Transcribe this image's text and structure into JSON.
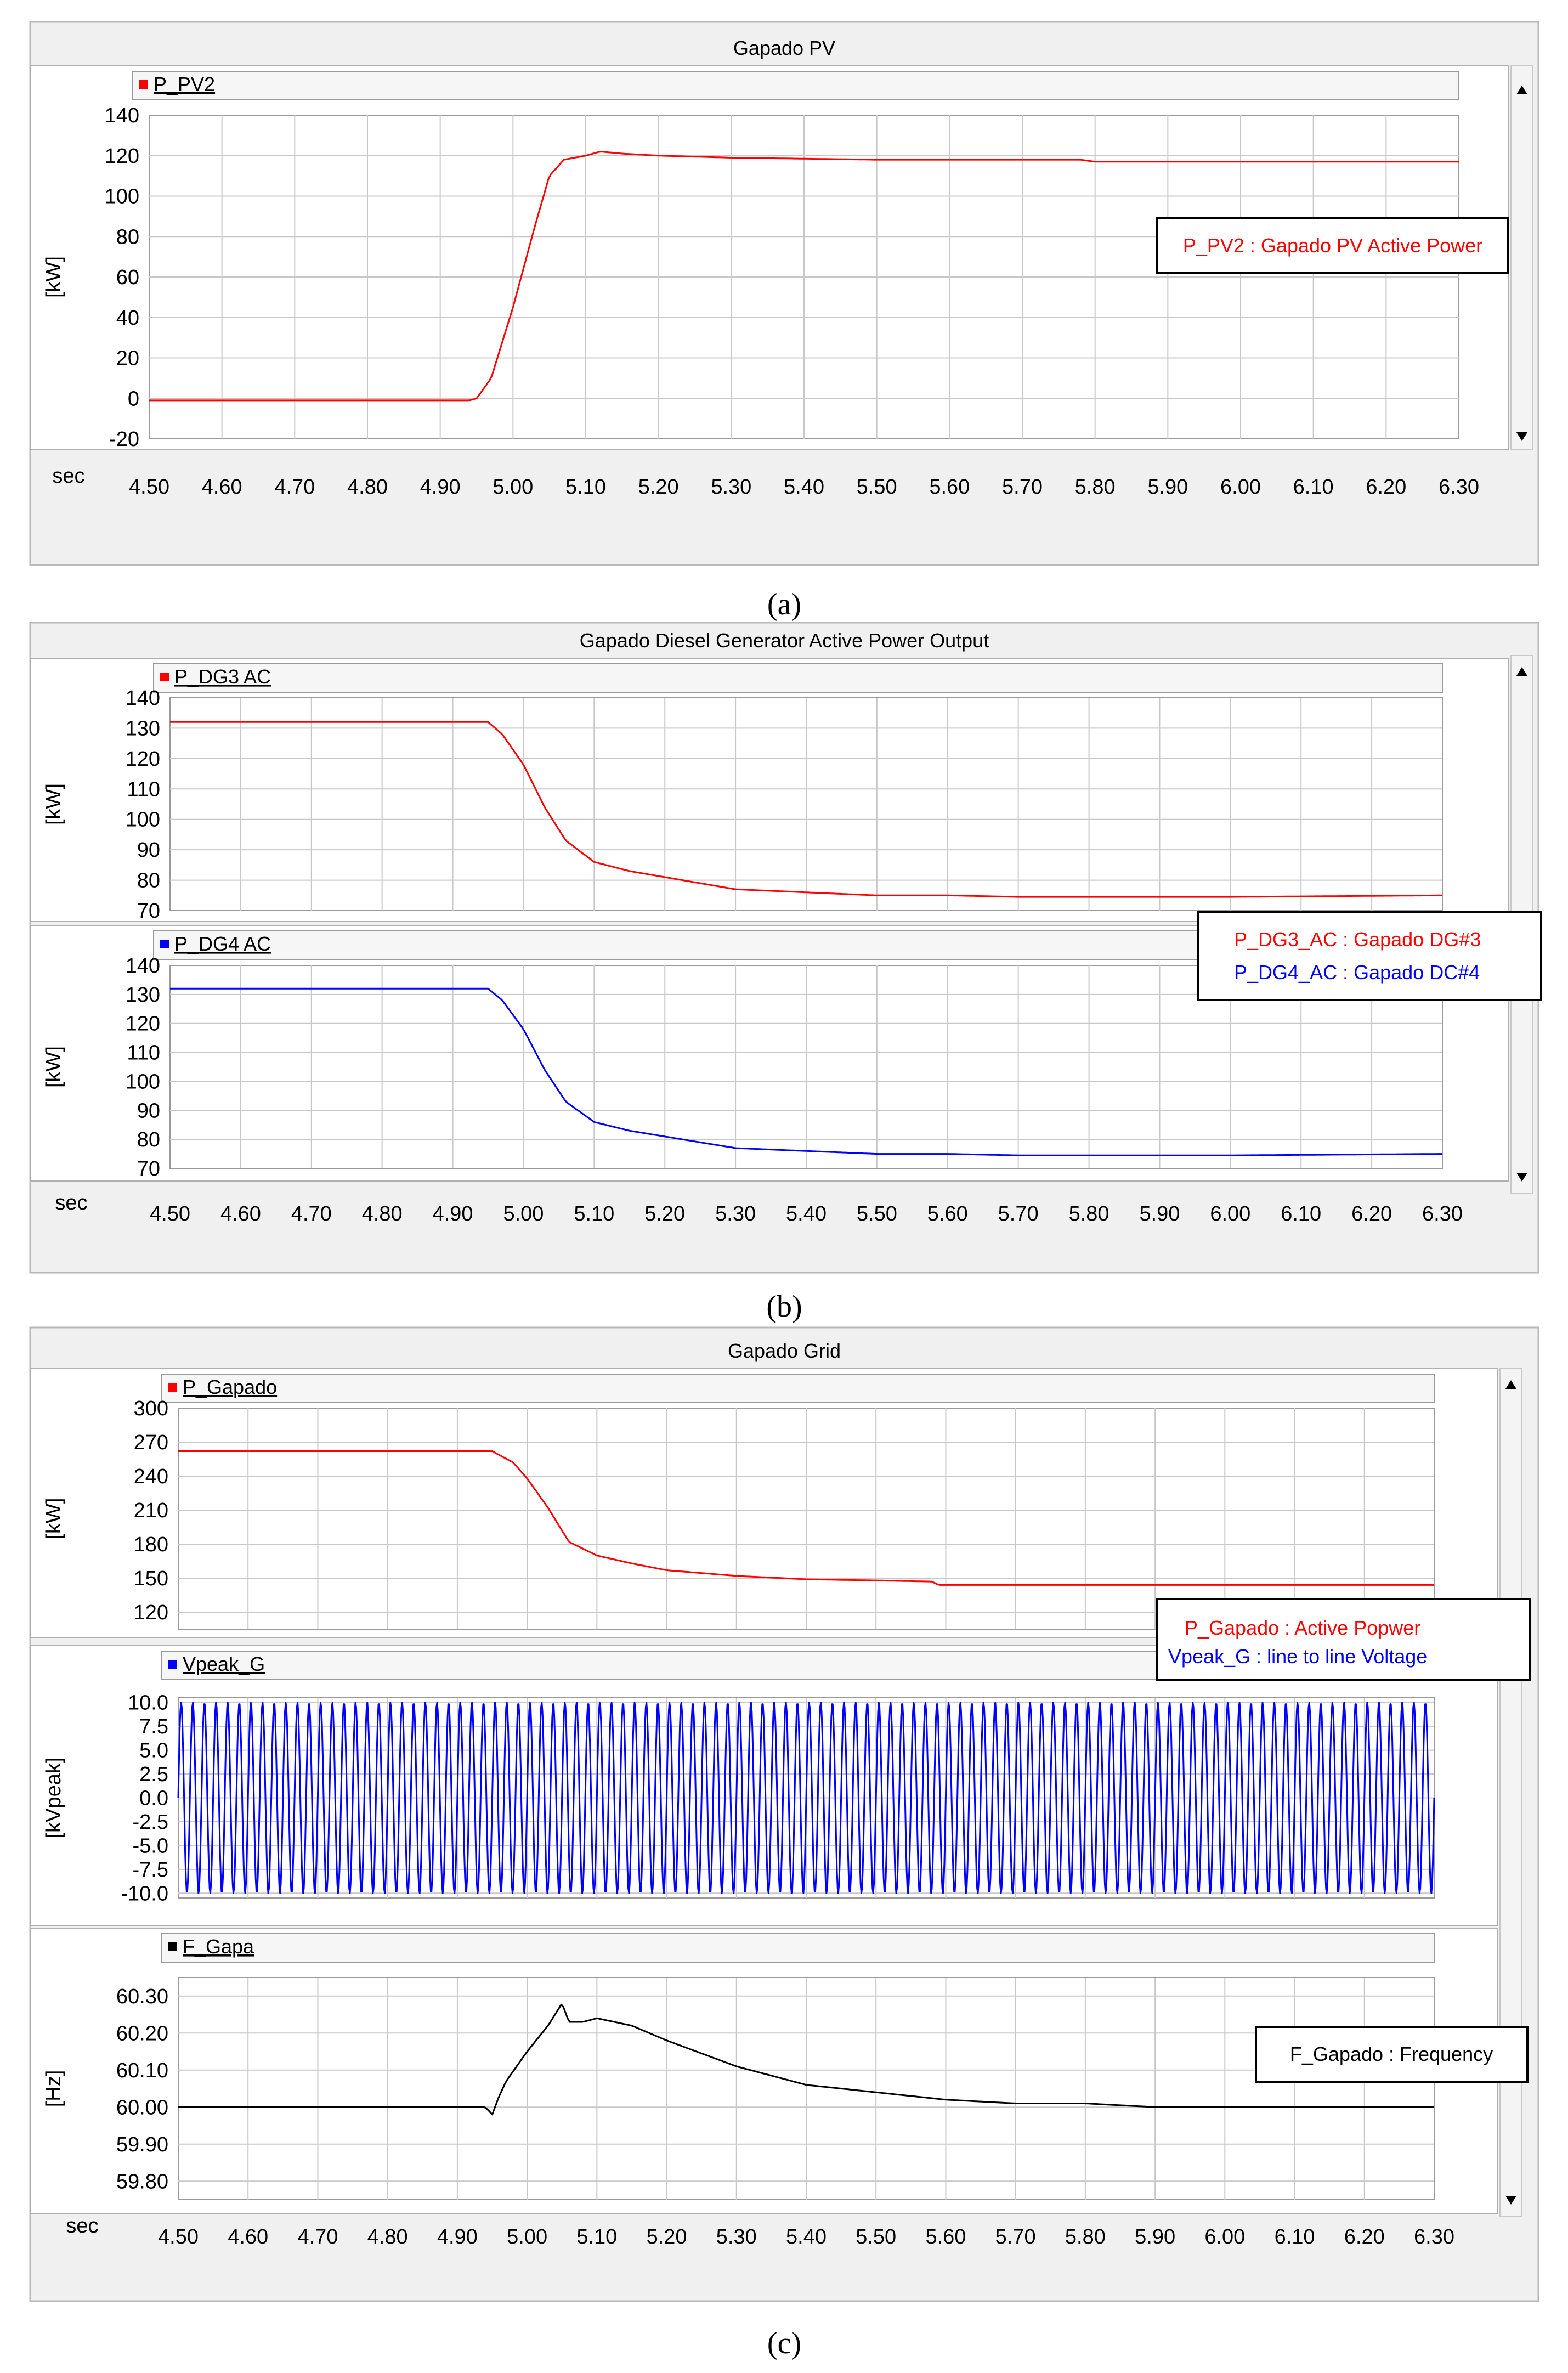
{
  "captions": [
    "(a)",
    "(b)",
    "(c)"
  ],
  "colors": {
    "red": "#ff0000",
    "blue": "#0000ff",
    "black": "#000000"
  },
  "icons": {
    "scroll_up": "up-triangle-icon",
    "scroll_down": "down-triangle-icon",
    "series_marker": "square-icon"
  },
  "x_axis": {
    "unit_label": "sec",
    "ticks": [
      "4.50",
      "4.60",
      "4.70",
      "4.80",
      "4.90",
      "5.00",
      "5.10",
      "5.20",
      "5.30",
      "5.40",
      "5.50",
      "5.60",
      "5.70",
      "5.80",
      "5.90",
      "6.00",
      "6.10",
      "6.20",
      "6.30"
    ]
  },
  "panels": [
    {
      "title": "Gapado PV",
      "legend": [
        {
          "text": "P_PV2 : Gapado PV Active Power",
          "color": "#ff0000"
        }
      ],
      "subplots": [
        {
          "signal": "P_PV2",
          "ylabel": "[kW]",
          "color": "#ff0000",
          "yticks": [
            "140",
            "120",
            "100",
            "80",
            "60",
            "40",
            "20",
            "0",
            "-20"
          ]
        }
      ]
    },
    {
      "title": "Gapado Diesel Generator Active Power Output",
      "legend": [
        {
          "text": "P_DG3_AC : Gapado  DG#3",
          "color": "#ff0000"
        },
        {
          "text": "P_DG4_AC : Gapado  DC#4",
          "color": "#0000ff"
        }
      ],
      "subplots": [
        {
          "signal": "P_DG3 AC",
          "ylabel": "[kW]",
          "color": "#ff0000",
          "yticks": [
            "140",
            "130",
            "120",
            "110",
            "100",
            "90",
            "80",
            "70"
          ]
        },
        {
          "signal": "P_DG4 AC",
          "ylabel": "[kW]",
          "color": "#0000ff",
          "yticks": [
            "140",
            "130",
            "120",
            "110",
            "100",
            "90",
            "80",
            "70"
          ]
        }
      ]
    },
    {
      "title": "Gapado Grid",
      "legend": [
        {
          "text": "P_Gapado : Active Popwer",
          "color": "#ff0000"
        },
        {
          "text": "Vpeak_G : line to line Voltage",
          "color": "#0000ff"
        }
      ],
      "legend2": [
        {
          "text": "F_Gapado : Frequency",
          "color": "#000000"
        }
      ],
      "subplots": [
        {
          "signal": "P_Gapado",
          "ylabel": "[kW]",
          "color": "#ff0000",
          "yticks": [
            "300",
            "270",
            "240",
            "210",
            "180",
            "150",
            "120"
          ]
        },
        {
          "signal": "Vpeak_G",
          "ylabel": "[kVpeak]",
          "color": "#0000ff",
          "yticks": [
            "10.0",
            "7.5",
            "5.0",
            "2.5",
            "0.0",
            "-2.5",
            "-5.0",
            "-7.5",
            "-10.0"
          ]
        },
        {
          "signal": "F_Gapa",
          "ylabel": "[Hz]",
          "color": "#000000",
          "yticks": [
            "60.30",
            "60.20",
            "60.10",
            "60.00",
            "59.90",
            "59.80"
          ]
        }
      ]
    }
  ],
  "chart_data": [
    {
      "type": "line",
      "title": "Gapado PV",
      "xlabel": "sec",
      "xlim": [
        4.5,
        6.3
      ],
      "series": [
        {
          "name": "P_PV2",
          "ylabel": "[kW]",
          "ylim": [
            -20,
            140
          ],
          "color": "#ff0000",
          "x": [
            4.5,
            4.94,
            4.95,
            4.97,
            5.0,
            5.03,
            5.05,
            5.07,
            5.1,
            5.12,
            5.15,
            5.2,
            5.3,
            5.5,
            5.78,
            5.8,
            5.9,
            6.0,
            6.1,
            6.2,
            6.3
          ],
          "y": [
            -1,
            -1,
            0,
            10,
            45,
            85,
            110,
            118,
            120,
            122,
            121,
            120,
            119,
            118,
            118,
            117,
            117,
            117,
            117,
            117,
            117
          ]
        }
      ]
    },
    {
      "type": "line",
      "title": "Gapado Diesel Generator Active Power Output",
      "xlabel": "sec",
      "xlim": [
        4.5,
        6.3
      ],
      "series": [
        {
          "name": "P_DG3 AC",
          "ylabel": "[kW]",
          "ylim": [
            70,
            140
          ],
          "color": "#ff0000",
          "x": [
            4.5,
            4.95,
            4.97,
            5.0,
            5.03,
            5.06,
            5.1,
            5.15,
            5.2,
            5.25,
            5.3,
            5.4,
            5.5,
            5.6,
            5.7,
            5.8,
            6.0,
            6.3
          ],
          "y": [
            132,
            132,
            128,
            118,
            104,
            93,
            86,
            83,
            81,
            79,
            77,
            76,
            75,
            75,
            74.5,
            74.5,
            74.5,
            75
          ]
        },
        {
          "name": "P_DG4 AC",
          "ylabel": "[kW]",
          "ylim": [
            70,
            140
          ],
          "color": "#0000ff",
          "x": [
            4.5,
            4.95,
            4.97,
            5.0,
            5.03,
            5.06,
            5.1,
            5.15,
            5.2,
            5.25,
            5.3,
            5.4,
            5.5,
            5.6,
            5.7,
            5.8,
            6.0,
            6.3
          ],
          "y": [
            132,
            132,
            128,
            118,
            104,
            93,
            86,
            83,
            81,
            79,
            77,
            76,
            75,
            75,
            74.5,
            74.5,
            74.5,
            75
          ]
        }
      ]
    },
    {
      "type": "line",
      "title": "Gapado Grid",
      "xlabel": "sec",
      "xlim": [
        4.5,
        6.3
      ],
      "series": [
        {
          "name": "P_Gapado",
          "ylabel": "[kW]",
          "ylim": [
            105,
            300
          ],
          "color": "#ff0000",
          "x": [
            4.5,
            4.95,
            4.98,
            5.0,
            5.03,
            5.06,
            5.1,
            5.15,
            5.2,
            5.3,
            5.4,
            5.5,
            5.58,
            5.59,
            5.7,
            6.0,
            6.3
          ],
          "y": [
            262,
            262,
            252,
            238,
            212,
            182,
            170,
            163,
            157,
            152,
            149,
            148,
            147,
            144,
            144,
            144,
            144
          ]
        },
        {
          "name": "Vpeak_G",
          "ylabel": "[kVpeak]",
          "ylim": [
            -10,
            10
          ],
          "color": "#0000ff",
          "amplitude": 10,
          "frequency_hz": 60
        },
        {
          "name": "F_Gapa",
          "ylabel": "[Hz]",
          "ylim": [
            59.75,
            60.35
          ],
          "color": "#000000",
          "x": [
            4.5,
            4.94,
            4.95,
            4.96,
            4.97,
            5.0,
            5.03,
            5.05,
            5.06,
            5.08,
            5.1,
            5.15,
            5.2,
            5.3,
            5.4,
            5.5,
            5.6,
            5.7,
            5.8,
            5.9,
            6.3
          ],
          "y": [
            60.0,
            60.0,
            59.98,
            60.03,
            60.07,
            60.15,
            60.22,
            60.28,
            60.23,
            60.23,
            60.24,
            60.22,
            60.18,
            60.11,
            60.06,
            60.04,
            60.02,
            60.01,
            60.01,
            60.0,
            60.0
          ]
        }
      ]
    }
  ]
}
